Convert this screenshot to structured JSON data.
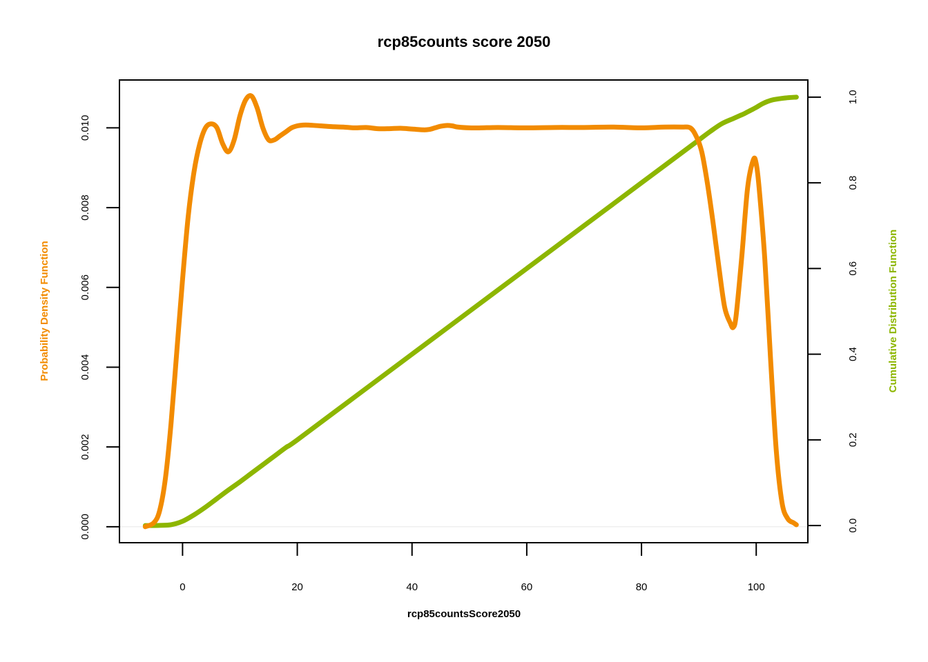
{
  "chart_data": {
    "type": "line",
    "title": "rcp85counts score 2050",
    "xlabel": "rcp85countsScore2050",
    "ylabel_left": "Probability Density Function",
    "ylabel_right": "Cumulative Distribution Function",
    "xlim": [
      -11,
      109
    ],
    "ylim_left": [
      -0.0004,
      0.0112
    ],
    "ylim_right": [
      -0.04,
      1.04
    ],
    "x_ticks": [
      0,
      20,
      40,
      60,
      80,
      100
    ],
    "x_tick_labels": [
      "0",
      "20",
      "40",
      "60",
      "80",
      "100"
    ],
    "y_left_ticks": [
      0,
      0.002,
      0.004,
      0.006,
      0.008,
      0.01
    ],
    "y_left_tick_labels": [
      "0.000",
      "0.002",
      "0.004",
      "0.006",
      "0.008",
      "0.010"
    ],
    "y_right_ticks": [
      0,
      0.2,
      0.4,
      0.6,
      0.8,
      1.0
    ],
    "y_right_tick_labels": [
      "0.0",
      "0.2",
      "0.4",
      "0.6",
      "0.8",
      "1.0"
    ],
    "colors": {
      "pdf": "#f28b00",
      "cdf": "#8db600",
      "zero_line": "#e8e8e8"
    },
    "grid": false,
    "series": [
      {
        "axis": "left",
        "color": "#f28b00",
        "x": [
          -6.5,
          -5,
          -4,
          -3,
          -2,
          -1,
          0,
          1,
          2,
          3,
          4,
          5,
          6,
          7,
          8,
          9,
          10,
          11,
          12,
          13,
          14,
          15,
          16,
          17,
          18,
          19,
          20,
          21,
          22,
          24,
          26,
          28,
          30,
          32,
          34,
          36,
          38,
          40,
          42,
          43,
          44,
          45,
          46,
          47,
          48,
          50,
          52,
          55,
          60,
          65,
          70,
          75,
          80,
          84,
          87,
          88.5,
          89.5,
          90.5,
          91.5,
          92.5,
          93.5,
          94.5,
          95.5,
          96,
          96.5,
          97.5,
          98.5,
          99.5,
          100,
          100.5,
          101.5,
          102.5,
          103.5,
          104.5,
          105.5,
          106.5,
          107
        ],
        "values": [
          0.0,
          0.0001,
          0.0004,
          0.0012,
          0.0026,
          0.0044,
          0.0062,
          0.0078,
          0.0089,
          0.0096,
          0.01,
          0.0101,
          0.01,
          0.0096,
          0.0094,
          0.0097,
          0.0103,
          0.0107,
          0.0108,
          0.0105,
          0.01,
          0.0097,
          0.0097,
          0.0098,
          0.0099,
          0.01,
          0.01005,
          0.01007,
          0.01007,
          0.01005,
          0.01003,
          0.01002,
          0.01,
          0.01001,
          0.00998,
          0.00998,
          0.00999,
          0.00997,
          0.00995,
          0.00996,
          0.01,
          0.01004,
          0.01006,
          0.01005,
          0.01002,
          0.01,
          0.01,
          0.01001,
          0.01,
          0.01001,
          0.01001,
          0.01002,
          0.01,
          0.01002,
          0.01002,
          0.01,
          0.0098,
          0.0094,
          0.0086,
          0.0076,
          0.0065,
          0.0055,
          0.0051,
          0.005,
          0.0053,
          0.0068,
          0.0085,
          0.0092,
          0.0091,
          0.0085,
          0.0067,
          0.0042,
          0.0019,
          0.0006,
          0.0002,
          0.0001,
          5e-05
        ]
      },
      {
        "axis": "right",
        "color": "#8db600",
        "x": [
          -6.5,
          -4,
          -2,
          0,
          2,
          4,
          6,
          8,
          10,
          12,
          14,
          16,
          18,
          20,
          30,
          40,
          50,
          60,
          70,
          80,
          85,
          88,
          90,
          92,
          94,
          96,
          97,
          98,
          99,
          100,
          101,
          102,
          103,
          105,
          107
        ],
        "values": [
          0.0,
          0.0005,
          0.002,
          0.01,
          0.025,
          0.043,
          0.063,
          0.083,
          0.102,
          0.122,
          0.142,
          0.162,
          0.182,
          0.2,
          0.3,
          0.4,
          0.5,
          0.6,
          0.7,
          0.8,
          0.85,
          0.88,
          0.9,
          0.92,
          0.938,
          0.95,
          0.956,
          0.962,
          0.969,
          0.976,
          0.984,
          0.99,
          0.994,
          0.998,
          1.0
        ]
      }
    ]
  }
}
